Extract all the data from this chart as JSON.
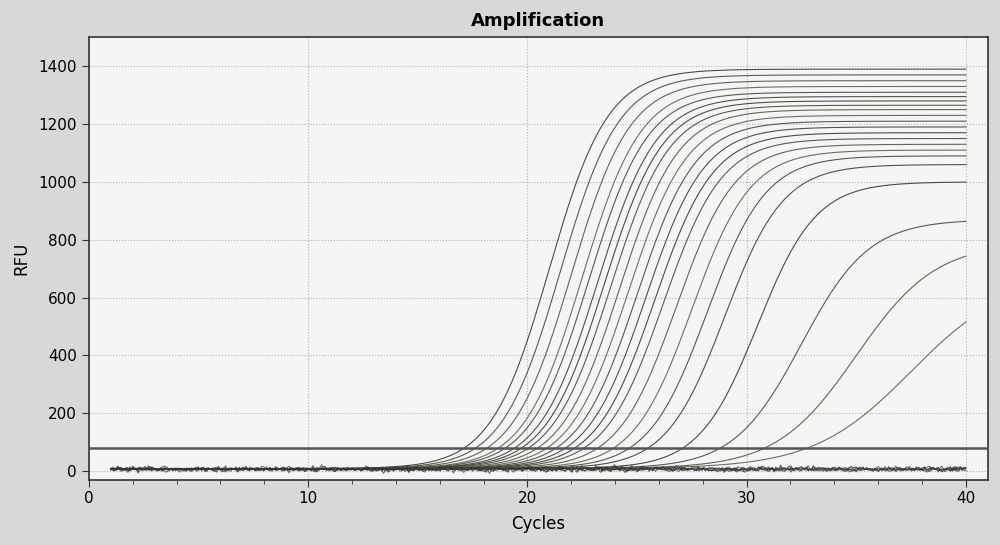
{
  "title": "Amplification",
  "xlabel": "Cycles",
  "ylabel": "RFU",
  "xlim": [
    0,
    41
  ],
  "ylim": [
    -30,
    1500
  ],
  "xticks": [
    0,
    10,
    20,
    30,
    40
  ],
  "yticks": [
    0,
    200,
    400,
    600,
    800,
    1000,
    1200,
    1400
  ],
  "background_color": "#d8d8d8",
  "plot_bg_color": "#f5f5f5",
  "grid_color": "#aaaaaa",
  "threshold_y": 80,
  "threshold_color": "#555555",
  "curve_colors": [
    "#3a3a30",
    "#4a4a40",
    "#555545",
    "#606050",
    "#484840",
    "#404038"
  ],
  "neg_color": "#333333",
  "midpoints": [
    21.0,
    21.5,
    22.0,
    22.5,
    22.8,
    23.2,
    23.5,
    23.8,
    24.2,
    24.6,
    25.0,
    25.4,
    25.8,
    26.2,
    26.8,
    27.5,
    28.2,
    29.0,
    30.5,
    32.5,
    35.0,
    37.5
  ],
  "plateaus": [
    1390,
    1370,
    1350,
    1330,
    1310,
    1295,
    1280,
    1265,
    1250,
    1230,
    1210,
    1190,
    1170,
    1150,
    1130,
    1110,
    1090,
    1060,
    1000,
    870,
    790,
    680
  ],
  "steepness": [
    0.75,
    0.75,
    0.75,
    0.75,
    0.75,
    0.75,
    0.75,
    0.75,
    0.75,
    0.75,
    0.75,
    0.75,
    0.75,
    0.75,
    0.75,
    0.75,
    0.75,
    0.75,
    0.75,
    0.65,
    0.55,
    0.45
  ],
  "num_negative_curves": 5,
  "figsize": [
    10.0,
    5.45
  ],
  "dpi": 100
}
